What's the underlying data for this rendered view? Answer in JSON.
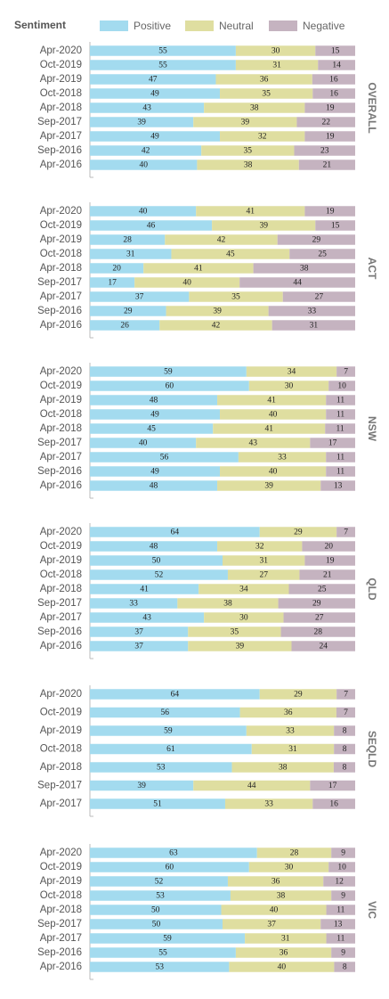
{
  "chart_data": [
    {
      "type": "bar",
      "title": "OVERALL",
      "legend_title": "Sentiment",
      "categories": [
        "Apr-2020",
        "Oct-2019",
        "Apr-2019",
        "Oct-2018",
        "Apr-2018",
        "Sep-2017",
        "Apr-2017",
        "Sep-2016",
        "Apr-2016"
      ],
      "series": [
        {
          "name": "Positive",
          "color": "#a3dbef",
          "values": [
            55,
            55,
            47,
            49,
            43,
            39,
            49,
            42,
            40
          ]
        },
        {
          "name": "Neutral",
          "color": "#dfdea0",
          "values": [
            30,
            31,
            36,
            35,
            38,
            39,
            32,
            35,
            38
          ]
        },
        {
          "name": "Negative",
          "color": "#c5b3c0",
          "values": [
            15,
            14,
            16,
            16,
            19,
            22,
            19,
            23,
            21
          ]
        }
      ]
    },
    {
      "type": "bar",
      "title": "ACT",
      "categories": [
        "Apr-2020",
        "Oct-2019",
        "Apr-2019",
        "Oct-2018",
        "Apr-2018",
        "Sep-2017",
        "Apr-2017",
        "Sep-2016",
        "Apr-2016"
      ],
      "series": [
        {
          "name": "Positive",
          "color": "#a3dbef",
          "values": [
            40,
            46,
            28,
            31,
            20,
            17,
            37,
            29,
            26
          ]
        },
        {
          "name": "Neutral",
          "color": "#dfdea0",
          "values": [
            41,
            39,
            42,
            45,
            41,
            40,
            35,
            39,
            42
          ]
        },
        {
          "name": "Negative",
          "color": "#c5b3c0",
          "values": [
            19,
            15,
            29,
            25,
            38,
            44,
            27,
            33,
            31
          ]
        }
      ]
    },
    {
      "type": "bar",
      "title": "NSW",
      "categories": [
        "Apr-2020",
        "Oct-2019",
        "Apr-2019",
        "Oct-2018",
        "Apr-2018",
        "Sep-2017",
        "Apr-2017",
        "Sep-2016",
        "Apr-2016"
      ],
      "series": [
        {
          "name": "Positive",
          "color": "#a3dbef",
          "values": [
            59,
            60,
            48,
            49,
            45,
            40,
            56,
            49,
            48
          ]
        },
        {
          "name": "Neutral",
          "color": "#dfdea0",
          "values": [
            34,
            30,
            41,
            40,
            41,
            43,
            33,
            40,
            39
          ]
        },
        {
          "name": "Negative",
          "color": "#c5b3c0",
          "values": [
            7,
            10,
            11,
            11,
            11,
            17,
            11,
            11,
            13
          ]
        }
      ]
    },
    {
      "type": "bar",
      "title": "QLD",
      "categories": [
        "Apr-2020",
        "Oct-2019",
        "Apr-2019",
        "Oct-2018",
        "Apr-2018",
        "Sep-2017",
        "Apr-2017",
        "Sep-2016",
        "Apr-2016"
      ],
      "series": [
        {
          "name": "Positive",
          "color": "#a3dbef",
          "values": [
            64,
            48,
            50,
            52,
            41,
            33,
            43,
            37,
            37
          ]
        },
        {
          "name": "Neutral",
          "color": "#dfdea0",
          "values": [
            29,
            32,
            31,
            27,
            34,
            38,
            30,
            35,
            39
          ]
        },
        {
          "name": "Negative",
          "color": "#c5b3c0",
          "values": [
            7,
            20,
            19,
            21,
            25,
            29,
            27,
            28,
            24
          ]
        }
      ]
    },
    {
      "type": "bar",
      "title": "SEQLD",
      "categories": [
        "Apr-2020",
        "Oct-2019",
        "Apr-2019",
        "Oct-2018",
        "Apr-2018",
        "Sep-2017",
        "Apr-2017"
      ],
      "series": [
        {
          "name": "Positive",
          "color": "#a3dbef",
          "values": [
            64,
            56,
            59,
            61,
            53,
            39,
            51
          ]
        },
        {
          "name": "Neutral",
          "color": "#dfdea0",
          "values": [
            29,
            36,
            33,
            31,
            38,
            44,
            33
          ]
        },
        {
          "name": "Negative",
          "color": "#c5b3c0",
          "values": [
            7,
            7,
            8,
            8,
            8,
            17,
            16
          ]
        }
      ]
    },
    {
      "type": "bar",
      "title": "VIC",
      "categories": [
        "Apr-2020",
        "Oct-2019",
        "Apr-2019",
        "Oct-2018",
        "Apr-2018",
        "Sep-2017",
        "Apr-2017",
        "Sep-2016",
        "Apr-2016"
      ],
      "series": [
        {
          "name": "Positive",
          "color": "#a3dbef",
          "values": [
            63,
            60,
            52,
            53,
            50,
            50,
            59,
            55,
            53
          ]
        },
        {
          "name": "Neutral",
          "color": "#dfdea0",
          "values": [
            28,
            30,
            36,
            38,
            40,
            37,
            31,
            36,
            40
          ]
        },
        {
          "name": "Negative",
          "color": "#c5b3c0",
          "values": [
            9,
            10,
            12,
            9,
            11,
            13,
            11,
            9,
            8
          ]
        }
      ]
    }
  ]
}
